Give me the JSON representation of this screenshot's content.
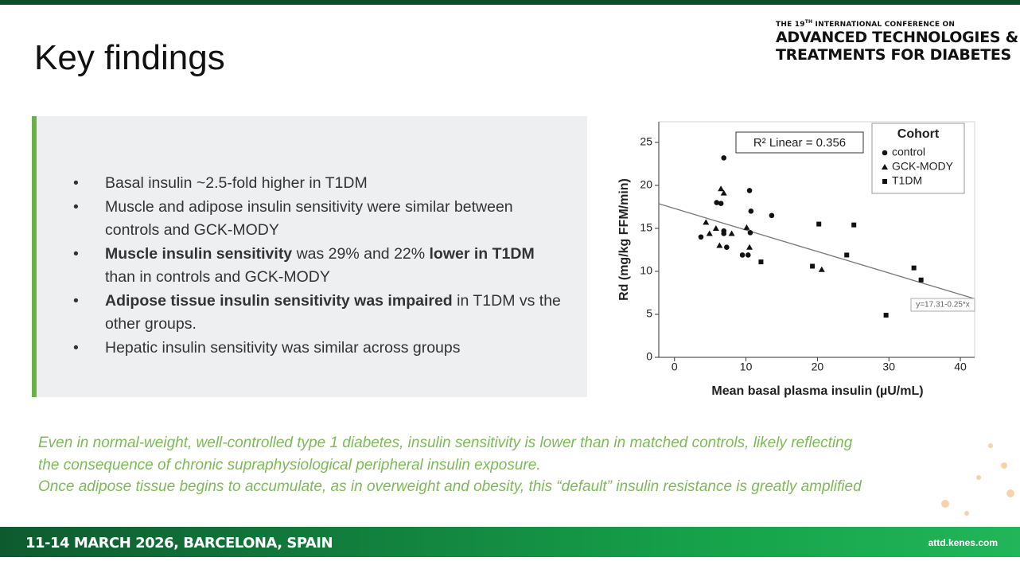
{
  "header": {
    "title": "Key findings",
    "conf_prefix": "THE 19",
    "conf_sup": "TH",
    "conf_rest": " INTERNATIONAL CONFERENCE ON",
    "conf_name_1": "ADVANCED TECHNOLOGIES &",
    "conf_name_2": "TREATMENTS FOR DIABETES"
  },
  "bullets": [
    [
      {
        "text": "Basal insulin ~2.5-fold higher in T1DM",
        "bold": false
      }
    ],
    [
      {
        "text": "Muscle and adipose insulin sensitivity were similar between controls and GCK-MODY",
        "bold": false
      }
    ],
    [
      {
        "text": "Muscle insulin sensitivity",
        "bold": true
      },
      {
        "text": " was 29% and 22% ",
        "bold": false
      },
      {
        "text": "lower in T1DM",
        "bold": true
      },
      {
        "text": " than in controls and GCK-MODY",
        "bold": false
      }
    ],
    [
      {
        "text": "Adipose tissue insulin sensitivity was impaired",
        "bold": true
      },
      {
        "text": " in T1DM vs the other groups.",
        "bold": false
      }
    ],
    [
      {
        "text": "Hepatic insulin sensitivity was similar across groups",
        "bold": false
      }
    ]
  ],
  "note": [
    "Even in normal-weight, well-controlled type 1 diabetes, insulin sensitivity is lower than in matched controls, likely reflecting",
    "the consequence of chronic supraphysiological peripheral insulin exposure.",
    "Once adipose tissue begins to accumulate, as in overweight and obesity, this “default” insulin resistance is greatly amplified"
  ],
  "footer": {
    "date": "11-14 MARCH 2026, BARCELONA, SPAIN",
    "url": "attd.kenes.com"
  },
  "chart_data": {
    "type": "scatter",
    "x_label": "Mean basal plasma insulin (µU/mL)",
    "y_label": "Rd (mg/kg FFM/min)",
    "xlim": [
      -2.2,
      42
    ],
    "ylim": [
      0,
      27.4
    ],
    "xticks": [
      0,
      10,
      20,
      30,
      40
    ],
    "yticks": [
      0,
      5,
      10,
      15,
      20,
      25
    ],
    "legend_title": "Cohort",
    "legend_position": "upper right",
    "annotation": "R² Linear = 0.356",
    "fit": {
      "label": "y=17.31-0.25*x",
      "intercept": 17.31,
      "slope": -0.25,
      "color": "#777777"
    },
    "series": [
      {
        "name": "control",
        "marker": "circle",
        "color": "#111111",
        "x": [
          6.9,
          10.5,
          10.7,
          13.6,
          5.9,
          6.5,
          6.9,
          6.9,
          7.3,
          3.7,
          9.5,
          10.3,
          10.6
        ],
        "values": [
          23.2,
          19.4,
          17.0,
          16.5,
          18.0,
          17.9,
          14.7,
          14.4,
          12.8,
          14.0,
          11.9,
          11.9,
          14.5
        ]
      },
      {
        "name": "GCK-MODY",
        "marker": "triangle",
        "color": "#111111",
        "x": [
          4.4,
          4.9,
          5.8,
          6.3,
          6.5,
          6.9,
          8.0,
          10.1,
          10.5,
          20.6
        ],
        "values": [
          15.7,
          14.4,
          15.0,
          13.0,
          19.6,
          19.1,
          14.4,
          15.1,
          12.8,
          10.2
        ]
      },
      {
        "name": "T1DM",
        "marker": "square",
        "color": "#111111",
        "x": [
          12.1,
          19.3,
          20.2,
          24.1,
          25.1,
          29.6,
          33.5,
          34.5
        ],
        "values": [
          11.1,
          10.6,
          15.5,
          11.9,
          15.4,
          4.9,
          10.4,
          9.0
        ]
      }
    ]
  }
}
